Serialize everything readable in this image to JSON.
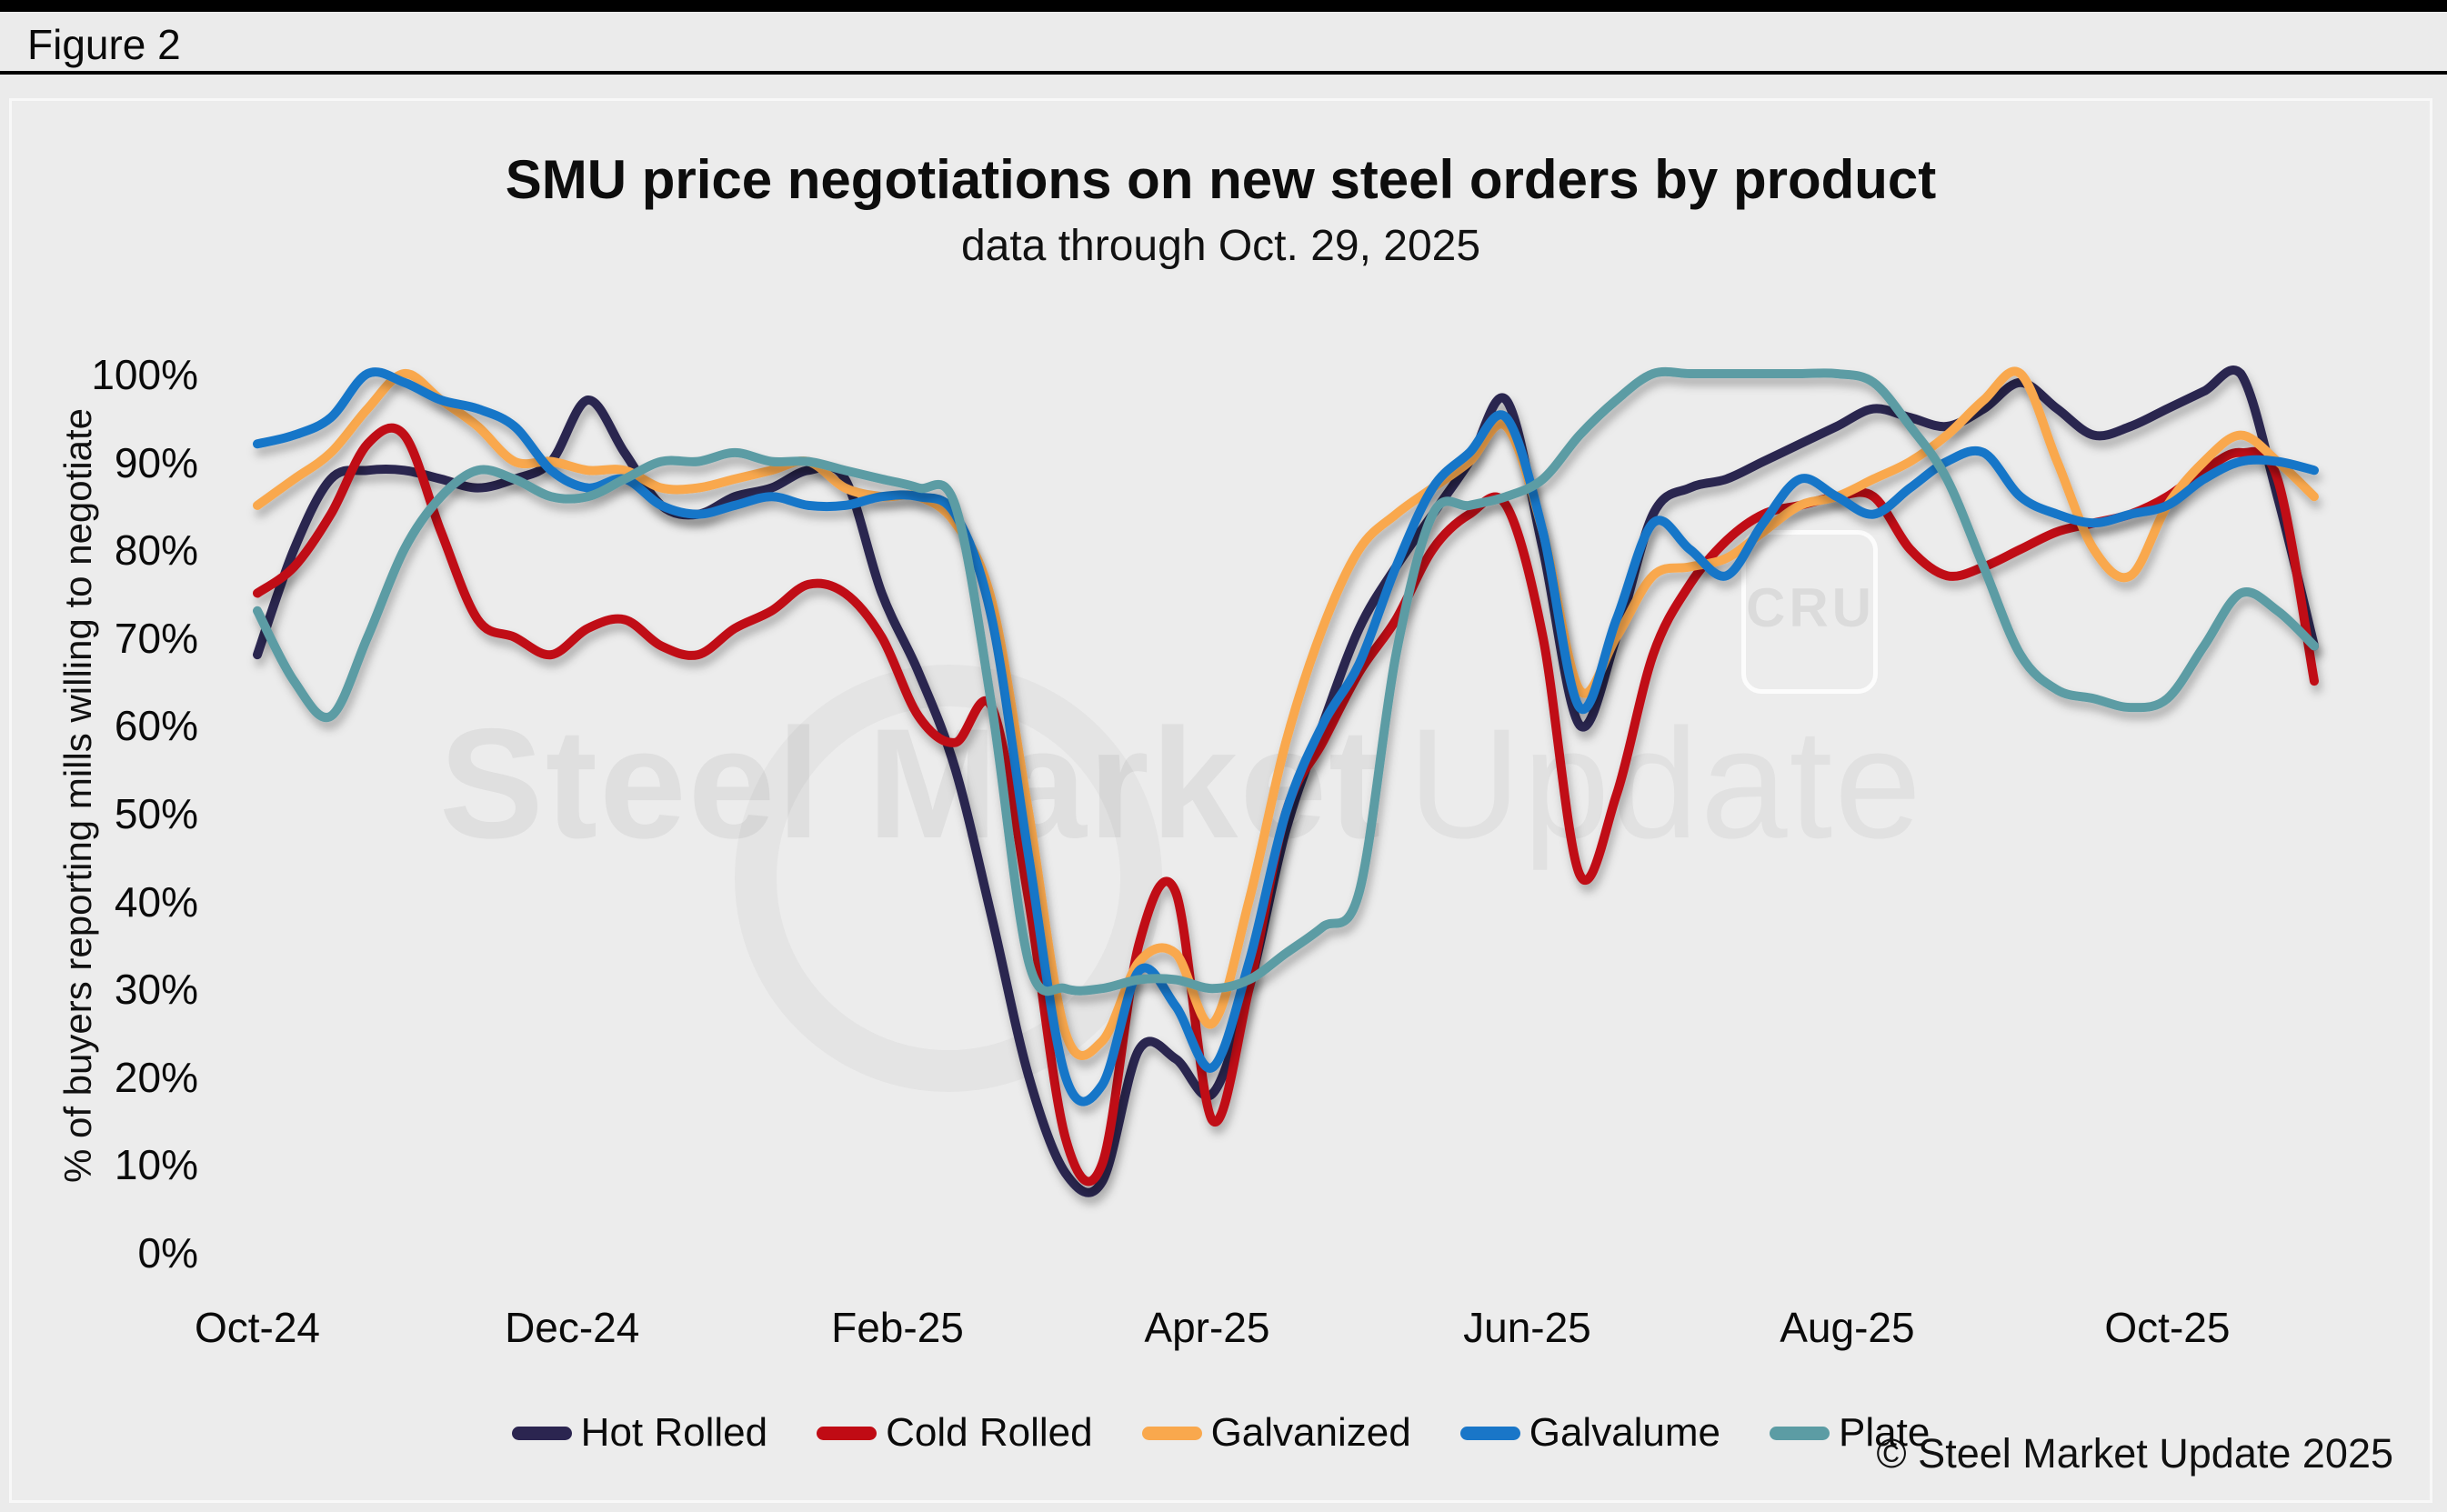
{
  "figure_label": "Figure 2",
  "chart": {
    "title": "SMU price negotiations on new steel orders by product",
    "subtitle": "data through Oct. 29, 2025",
    "y_axis_title": "% of buyers reporting mills willing to negotiate",
    "watermark_line1": "Steel Market",
    "watermark_line2": "Update",
    "watermark_badge": "CRU",
    "copyright": "© Steel Market Update 2025"
  },
  "chart_data": {
    "type": "line",
    "title": "SMU price negotiations on new steel orders by product",
    "subtitle": "data through Oct. 29, 2025",
    "ylabel": "% of buyers reporting mills willing to negotiate",
    "xlabel": "",
    "ylim": [
      0,
      100
    ],
    "grid": false,
    "legend_position": "bottom",
    "y_tick_labels": [
      "100%",
      "90%",
      "80%",
      "70%",
      "60%",
      "50%",
      "40%",
      "30%",
      "20%",
      "10%",
      "0%"
    ],
    "x_tick_labels": [
      "Oct-24",
      "Dec-24",
      "Feb-25",
      "Apr-25",
      "Jun-25",
      "Aug-25",
      "Oct-25"
    ],
    "x": [
      "2024-10-02",
      "2024-10-09",
      "2024-10-16",
      "2024-10-23",
      "2024-10-30",
      "2024-11-06",
      "2024-11-13",
      "2024-11-20",
      "2024-11-27",
      "2024-12-04",
      "2024-12-11",
      "2024-12-18",
      "2024-12-25",
      "2025-01-01",
      "2025-01-08",
      "2025-01-15",
      "2025-01-22",
      "2025-01-29",
      "2025-02-05",
      "2025-02-12",
      "2025-02-19",
      "2025-02-26",
      "2025-03-05",
      "2025-03-12",
      "2025-03-19",
      "2025-03-26",
      "2025-04-02",
      "2025-04-09",
      "2025-04-16",
      "2025-04-23",
      "2025-04-30",
      "2025-05-07",
      "2025-05-14",
      "2025-05-21",
      "2025-05-28",
      "2025-06-04",
      "2025-06-11",
      "2025-06-18",
      "2025-06-25",
      "2025-07-02",
      "2025-07-09",
      "2025-07-16",
      "2025-07-23",
      "2025-07-30",
      "2025-08-06",
      "2025-08-13",
      "2025-08-20",
      "2025-08-27",
      "2025-09-03",
      "2025-09-10",
      "2025-09-17",
      "2025-09-24",
      "2025-10-01",
      "2025-10-08",
      "2025-10-15",
      "2025-10-22",
      "2025-10-29"
    ],
    "series": [
      {
        "name": "Hot Rolled",
        "color": "#2b2550",
        "values": [
          68,
          80,
          88,
          89,
          89,
          88,
          87,
          88,
          90,
          97,
          91,
          85,
          84,
          86,
          87,
          89,
          88,
          75,
          66,
          55,
          38,
          20,
          9,
          8,
          23,
          22,
          18,
          30,
          48,
          60,
          71,
          78,
          84,
          90,
          97,
          80,
          60,
          70,
          84,
          87,
          88,
          90,
          92,
          94,
          96,
          95,
          94,
          96,
          99,
          96,
          93,
          94,
          96,
          98,
          100,
          86,
          69
        ]
      },
      {
        "name": "Cold Rolled",
        "color": "#c00b14",
        "values": [
          75,
          78,
          84,
          92,
          93,
          82,
          72,
          70,
          68,
          71,
          72,
          69,
          68,
          71,
          73,
          76,
          75,
          70,
          61,
          58,
          62,
          40,
          13,
          10,
          35,
          41,
          15,
          30,
          50,
          58,
          66,
          72,
          80,
          84,
          85,
          70,
          43,
          52,
          68,
          76,
          81,
          84,
          85,
          86,
          86,
          80,
          77,
          78,
          80,
          82,
          83,
          84,
          86,
          89,
          91,
          88,
          65
        ]
      },
      {
        "name": "Galvanized",
        "color": "#f9a84d",
        "values": [
          85,
          88,
          91,
          96,
          100,
          97,
          94,
          90,
          90,
          89,
          89,
          87,
          87,
          88,
          89,
          90,
          87,
          86,
          86,
          83,
          74,
          50,
          25,
          24,
          33,
          34,
          26,
          40,
          58,
          71,
          80,
          84,
          87,
          90,
          94,
          82,
          64,
          70,
          77,
          78,
          79,
          82,
          85,
          86,
          88,
          90,
          93,
          97,
          100,
          90,
          80,
          77,
          85,
          90,
          93,
          90,
          86
        ]
      },
      {
        "name": "Galvalume",
        "color": "#1976c8",
        "values": [
          92,
          93,
          95,
          100,
          99,
          97,
          96,
          94,
          89,
          87,
          88,
          85,
          84,
          85,
          86,
          85,
          85,
          86,
          86,
          84,
          72,
          45,
          20,
          19,
          32,
          28,
          21,
          33,
          50,
          60,
          67,
          78,
          87,
          91,
          95,
          82,
          62,
          72,
          83,
          80,
          77,
          83,
          88,
          86,
          84,
          87,
          90,
          91,
          86,
          84,
          83,
          84,
          85,
          88,
          90,
          90,
          89
        ]
      },
      {
        "name": "Plate",
        "color": "#5c9ca4",
        "values": [
          73,
          65,
          61,
          70,
          80,
          86,
          89,
          88,
          86,
          86,
          88,
          90,
          90,
          91,
          90,
          90,
          89,
          88,
          87,
          85,
          62,
          33,
          30,
          30,
          31,
          31,
          30,
          31,
          34,
          37,
          41,
          68,
          84,
          85,
          86,
          88,
          93,
          97,
          100,
          100,
          100,
          100,
          100,
          100,
          99,
          94,
          88,
          78,
          68,
          64,
          63,
          62,
          63,
          69,
          75,
          73,
          69
        ]
      }
    ]
  }
}
